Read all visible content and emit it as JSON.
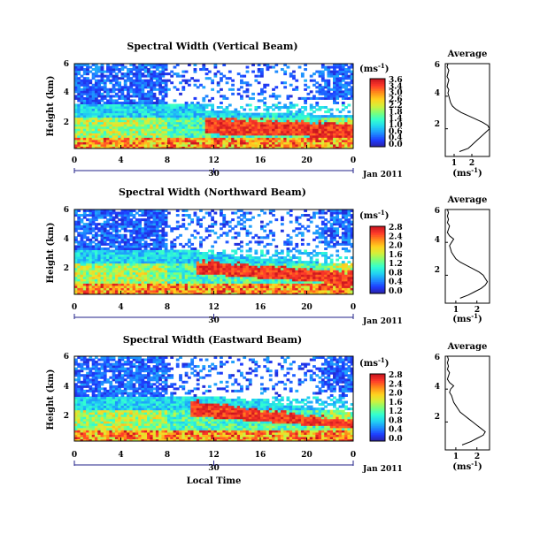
{
  "figure": {
    "date_label": "Jan 2011",
    "x_axis_label": "Local Time",
    "colorbar_unit": "(ms",
    "colorbar_unit_exp": "-1",
    "colorbar_unit_close": ")",
    "profile_title": "Average",
    "profile_xlabel": "(ms",
    "profile_xlabel_exp": "-1",
    "profile_xlabel_close": ")",
    "colors": {
      "jet": [
        "#2a1fa0",
        "#1e3cff",
        "#1e8cff",
        "#21d3f2",
        "#33ffd0",
        "#7bff7a",
        "#d3f03a",
        "#ffd21f",
        "#ff8c1a",
        "#ff3a2a",
        "#c8141e"
      ]
    }
  },
  "chart_data": [
    {
      "type": "heatmap",
      "title": "Spectral Width (Vertical Beam)",
      "xlabel": "Local Time",
      "ylabel": "Height (km)",
      "x_ticks": [
        "0",
        "4",
        "8",
        "12",
        "16",
        "20",
        "0"
      ],
      "x_date_tick": "30",
      "y_ticks": [
        "6",
        "4",
        "2"
      ],
      "xlim": [
        0,
        24
      ],
      "ylim": [
        0.3,
        6
      ],
      "colorbar": {
        "label": "(ms-1)",
        "ticks": [
          "3.6",
          "3.4",
          "3.0",
          "2.6",
          "2.2",
          "1.8",
          "1.4",
          "1.0",
          "0.6",
          "0.4",
          "0.0"
        ],
        "range": [
          0,
          3.6
        ]
      },
      "features": {
        "base_level": 1.1,
        "ribbon_top": [
          2.35,
          2.0
        ],
        "ribbon_bottom": [
          1.3,
          1.05
        ],
        "ribbon_start_h": 11.3
      },
      "profile": {
        "title": "Average",
        "xlabel": "(ms-1)",
        "x_ticks": [
          "1",
          "2"
        ],
        "y_ticks": [
          "6",
          "4",
          "2"
        ],
        "xlim": [
          0.5,
          3.0
        ],
        "ylim": [
          0.3,
          6
        ],
        "heights": [
          0.6,
          0.8,
          1.0,
          1.2,
          1.4,
          1.6,
          1.8,
          2.0,
          2.2,
          2.4,
          2.6,
          2.8,
          3.0,
          3.2,
          3.4,
          3.6,
          3.8,
          4.0,
          4.2,
          4.4,
          4.6,
          4.8,
          5.0,
          5.2,
          5.4,
          5.6,
          5.8,
          6.0
        ],
        "values": [
          1.3,
          1.8,
          2.0,
          2.2,
          2.4,
          2.6,
          2.8,
          3.0,
          2.9,
          2.6,
          2.2,
          1.8,
          1.4,
          1.1,
          0.9,
          0.8,
          0.75,
          0.7,
          0.65,
          0.7,
          0.6,
          0.65,
          0.7,
          0.6,
          0.65,
          0.7,
          0.6,
          0.65
        ]
      }
    },
    {
      "type": "heatmap",
      "title": "Spectral Width (Northward Beam)",
      "xlabel": "Local Time",
      "ylabel": "Height (km)",
      "x_ticks": [
        "0",
        "4",
        "8",
        "12",
        "16",
        "20",
        "0"
      ],
      "x_date_tick": "30",
      "y_ticks": [
        "6",
        "4",
        "2"
      ],
      "xlim": [
        0,
        24
      ],
      "ylim": [
        0.3,
        6
      ],
      "colorbar": {
        "label": "(ms-1)",
        "ticks": [
          "2.8",
          "2.4",
          "2.0",
          "1.6",
          "1.2",
          "0.8",
          "0.4",
          "0.0"
        ],
        "range": [
          0,
          2.8
        ]
      },
      "features": {
        "base_level": 1.0,
        "ribbon_top": [
          2.6,
          1.8
        ],
        "ribbon_bottom": [
          1.7,
          1.0
        ],
        "ribbon_start_h": 10.5
      },
      "profile": {
        "title": "Average",
        "xlabel": "(ms-1)",
        "x_ticks": [
          "1",
          "2"
        ],
        "y_ticks": [
          "6",
          "4",
          "2"
        ],
        "xlim": [
          0.5,
          2.6
        ],
        "ylim": [
          0.3,
          6
        ],
        "heights": [
          0.6,
          0.8,
          1.0,
          1.2,
          1.4,
          1.6,
          1.8,
          2.0,
          2.2,
          2.4,
          2.6,
          2.8,
          3.0,
          3.2,
          3.4,
          3.6,
          3.8,
          4.0,
          4.2,
          4.4,
          4.6,
          4.8,
          5.0,
          5.2,
          5.4,
          5.6,
          5.8,
          6.0
        ],
        "values": [
          1.2,
          1.6,
          1.9,
          2.2,
          2.4,
          2.5,
          2.4,
          2.3,
          2.1,
          1.8,
          1.5,
          1.2,
          1.0,
          0.9,
          0.8,
          0.75,
          0.7,
          0.8,
          0.9,
          0.7,
          0.6,
          0.65,
          0.7,
          0.6,
          0.65,
          0.6,
          0.65,
          0.6
        ]
      }
    },
    {
      "type": "heatmap",
      "title": "Spectral Width (Eastward Beam)",
      "xlabel": "Local Time",
      "ylabel": "Height (km)",
      "x_ticks": [
        "0",
        "4",
        "8",
        "12",
        "16",
        "20",
        "0"
      ],
      "x_date_tick": "30",
      "y_ticks": [
        "6",
        "4",
        "2"
      ],
      "xlim": [
        0,
        24
      ],
      "ylim": [
        0.3,
        6
      ],
      "colorbar": {
        "label": "(ms-1)",
        "ticks": [
          "2.8",
          "2.4",
          "2.0",
          "1.6",
          "1.2",
          "0.8",
          "0.4",
          "0.0"
        ],
        "range": [
          0,
          2.8
        ]
      },
      "features": {
        "base_level": 1.0,
        "ribbon_top": [
          3.0,
          1.75
        ],
        "ribbon_bottom": [
          2.0,
          1.15
        ],
        "ribbon_start_h": 10.0
      },
      "profile": {
        "title": "Average",
        "xlabel": "(ms-1)",
        "x_ticks": [
          "1",
          "2"
        ],
        "y_ticks": [
          "6",
          "4",
          "2"
        ],
        "xlim": [
          0.5,
          2.6
        ],
        "ylim": [
          0.3,
          6
        ],
        "heights": [
          0.6,
          0.8,
          1.0,
          1.2,
          1.4,
          1.6,
          1.8,
          2.0,
          2.2,
          2.4,
          2.6,
          2.8,
          3.0,
          3.2,
          3.4,
          3.6,
          3.8,
          4.0,
          4.2,
          4.4,
          4.6,
          4.8,
          5.0,
          5.2,
          5.4,
          5.6,
          5.8,
          6.0
        ],
        "values": [
          1.3,
          1.7,
          2.0,
          2.3,
          2.4,
          2.2,
          2.0,
          1.8,
          1.6,
          1.4,
          1.2,
          1.1,
          1.0,
          0.9,
          0.85,
          0.8,
          0.7,
          0.75,
          0.9,
          0.7,
          0.6,
          0.65,
          0.7,
          0.6,
          0.65,
          0.6,
          0.65,
          0.6
        ]
      }
    }
  ]
}
